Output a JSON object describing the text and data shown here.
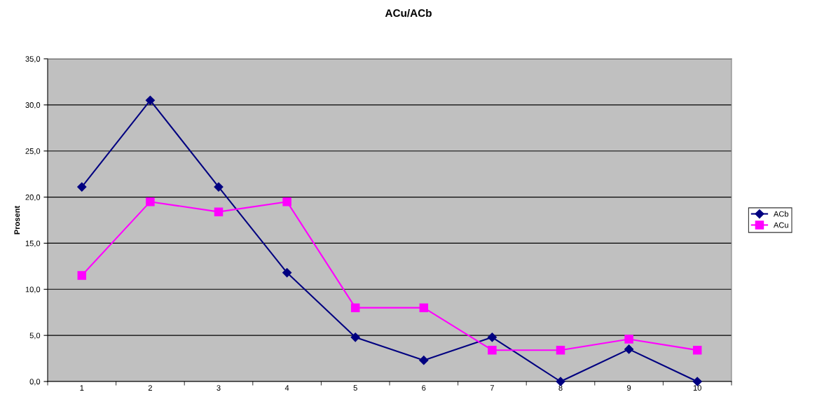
{
  "chart_data": {
    "type": "line",
    "title": "ACu/ACb",
    "ylabel": "Prosent",
    "categories": [
      "1",
      "2",
      "3",
      "4",
      "5",
      "6",
      "7",
      "8",
      "9",
      "10"
    ],
    "series": [
      {
        "name": "ACb",
        "color": "#000080",
        "marker": "diamond",
        "values": [
          21.1,
          30.5,
          21.1,
          11.8,
          4.8,
          2.3,
          4.8,
          0.0,
          3.5,
          0.0
        ]
      },
      {
        "name": "ACu",
        "color": "#ff00ff",
        "marker": "square",
        "values": [
          11.5,
          19.5,
          18.4,
          19.5,
          8.0,
          8.0,
          3.4,
          3.4,
          4.6,
          3.4
        ]
      }
    ],
    "ylim": [
      0,
      35
    ],
    "yticks": [
      {
        "value": 0,
        "label": "0,0"
      },
      {
        "value": 5,
        "label": "5,0"
      },
      {
        "value": 10,
        "label": "10,0"
      },
      {
        "value": 15,
        "label": "15,0"
      },
      {
        "value": 20,
        "label": "20,0"
      },
      {
        "value": 25,
        "label": "25,0"
      },
      {
        "value": 30,
        "label": "30,0"
      },
      {
        "value": 35,
        "label": "35,0"
      }
    ],
    "grid": "y",
    "legend": "right",
    "line_style": "solid"
  }
}
